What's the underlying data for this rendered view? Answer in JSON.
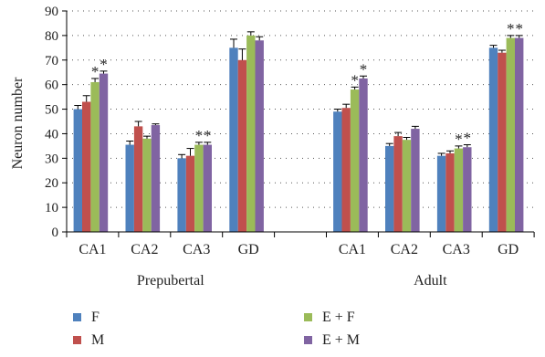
{
  "chart_data": {
    "type": "bar",
    "ylabel": "Neuron number",
    "xlabel": "",
    "ylim": [
      0,
      90
    ],
    "yticks": [
      0,
      10,
      20,
      30,
      40,
      50,
      60,
      70,
      80,
      90
    ],
    "grid": "dotted-horizontal",
    "categories": [
      "CA1",
      "CA2",
      "CA3",
      "GD",
      "",
      "CA1",
      "CA2",
      "CA3",
      "GD"
    ],
    "groups": [
      {
        "label": "Prepubertal",
        "categories": [
          "CA1",
          "CA2",
          "CA3",
          "GD"
        ]
      },
      {
        "label": "Adult",
        "categories": [
          "CA1",
          "CA2",
          "CA3",
          "GD"
        ]
      }
    ],
    "series": [
      {
        "name": "F",
        "color": "#4F81BD",
        "values": [
          50,
          35.5,
          30,
          75,
          null,
          49,
          35,
          31,
          75
        ],
        "errors": [
          1.5,
          1.5,
          1.5,
          3.5,
          null,
          1,
          1,
          1,
          1
        ]
      },
      {
        "name": "M",
        "color": "#C0504D",
        "values": [
          53,
          43,
          31,
          70,
          null,
          50.5,
          39,
          32,
          73
        ],
        "errors": [
          2.5,
          2,
          3,
          4.5,
          null,
          1.5,
          1.5,
          1,
          1
        ]
      },
      {
        "name": "E + F",
        "color": "#9BBB59",
        "values": [
          61,
          38,
          35.5,
          80,
          null,
          58,
          37.5,
          34,
          79
        ],
        "errors": [
          1.5,
          1,
          1,
          1.5,
          null,
          1,
          1,
          1,
          1
        ]
      },
      {
        "name": "E + M",
        "color": "#8064A2",
        "values": [
          64.5,
          43.5,
          35.5,
          78,
          null,
          62.5,
          42,
          34.5,
          79
        ],
        "errors": [
          1,
          0.5,
          1,
          1.5,
          null,
          1,
          1,
          1,
          1
        ]
      }
    ],
    "significance_marker": "*",
    "significant": [
      {
        "category_index": 0,
        "series": [
          2,
          3
        ]
      },
      {
        "category_index": 2,
        "series": [
          2,
          3
        ]
      },
      {
        "category_index": 5,
        "series": [
          2,
          3
        ]
      },
      {
        "category_index": 7,
        "series": [
          2,
          3
        ]
      },
      {
        "category_index": 8,
        "series": [
          2,
          3
        ]
      }
    ],
    "legend_position": "bottom"
  }
}
